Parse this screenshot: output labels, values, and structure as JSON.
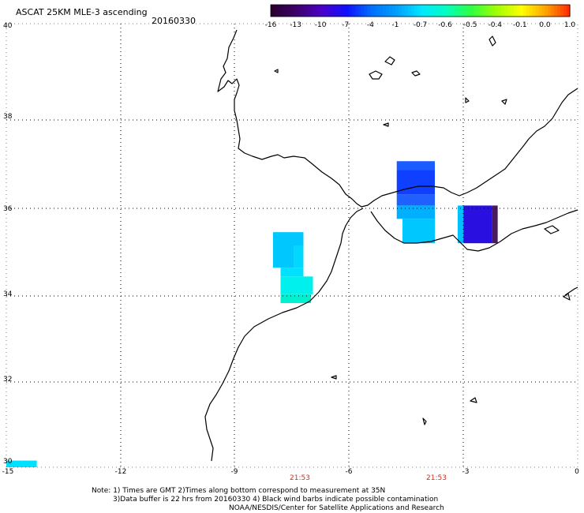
{
  "header": {
    "title": "ASCAT 25KM MLE-3 ascending",
    "date": "20160330"
  },
  "colorbar": {
    "labels": [
      "-16",
      "-13",
      "-10",
      "-7",
      "-4",
      "-1",
      "-0.7",
      "-0.6",
      "-0.5",
      "-0.4",
      "-0.1",
      "0.0",
      "1.0"
    ],
    "colors": [
      "#2a0030",
      "#3f006e",
      "#4a00c8",
      "#1010ff",
      "#0070ff",
      "#00a0ff",
      "#00e8ff",
      "#00ffc0",
      "#30ff40",
      "#a0ff00",
      "#ffff00",
      "#ffa000",
      "#ff2000"
    ]
  },
  "axes": {
    "lat_labels": [
      "40",
      "38",
      "36",
      "34",
      "32",
      "30"
    ],
    "lon_labels": [
      "-15",
      "-12",
      "-9",
      "-6",
      "-3",
      "0"
    ],
    "grid": "dotted"
  },
  "time_labels": [
    "21:53",
    "21:53"
  ],
  "notes": {
    "line1": "Note: 1) Times are GMT 2)Times along bottom correspond to measurement at 35N",
    "line2": "3)Data buffer is 22 hrs from 20160330 4) Black wind barbs indicate possible contamination",
    "line3": "NOAA/NESDIS/Center for Satellite Applications and Research"
  },
  "data_cells": [
    {
      "lon0": -8.0,
      "lon1": -7.2,
      "lat0": 35.0,
      "lat1": 35.3,
      "color": "#00c8ff"
    },
    {
      "lon0": -8.0,
      "lon1": -7.45,
      "lat0": 34.5,
      "lat1": 35.0,
      "color": "#00c8ff"
    },
    {
      "lon0": -7.45,
      "lon1": -7.2,
      "lat0": 34.5,
      "lat1": 35.0,
      "color": "#00d8ff"
    },
    {
      "lon0": -7.8,
      "lon1": -7.2,
      "lat0": 34.3,
      "lat1": 34.5,
      "color": "#00e0ff"
    },
    {
      "lon0": -7.8,
      "lon1": -6.95,
      "lat0": 33.9,
      "lat1": 34.3,
      "color": "#00f0ee"
    },
    {
      "lon0": -7.8,
      "lon1": -7.0,
      "lat0": 33.7,
      "lat1": 33.9,
      "color": "#00f0d0"
    },
    {
      "lon0": -4.75,
      "lon1": -3.75,
      "lat0": 36.7,
      "lat1": 36.9,
      "color": "#1a5cff"
    },
    {
      "lon0": -4.75,
      "lon1": -3.75,
      "lat0": 36.15,
      "lat1": 36.7,
      "color": "#1040ff"
    },
    {
      "lon0": -4.75,
      "lon1": -3.75,
      "lat0": 35.9,
      "lat1": 36.15,
      "color": "#2060ff"
    },
    {
      "lon0": -4.75,
      "lon1": -3.75,
      "lat0": 35.6,
      "lat1": 35.9,
      "color": "#00b0ff"
    },
    {
      "lon0": -4.6,
      "lon1": -3.75,
      "lat0": 35.05,
      "lat1": 35.6,
      "color": "#00c8ff"
    },
    {
      "lon0": -3.15,
      "lon1": -3.0,
      "lat0": 35.05,
      "lat1": 35.9,
      "color": "#00c0ff"
    },
    {
      "lon0": -3.0,
      "lon1": -2.25,
      "lat0": 35.05,
      "lat1": 35.9,
      "color": "#2a10e0"
    },
    {
      "lon0": -2.25,
      "lon1": -2.1,
      "lat0": 35.05,
      "lat1": 35.9,
      "color": "#4a1a5e"
    },
    {
      "lon0": -15.0,
      "lon1": -14.2,
      "lat0": 30.0,
      "lat1": 30.15,
      "color": "#00e0ff"
    }
  ]
}
